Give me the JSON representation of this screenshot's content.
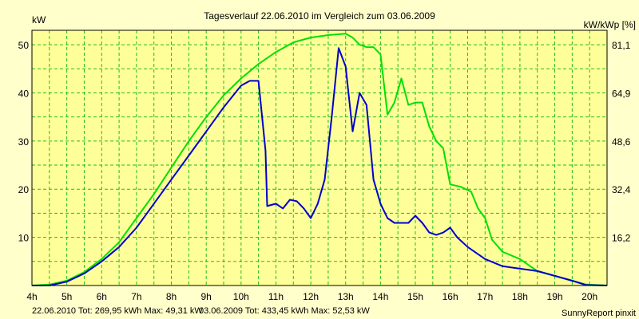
{
  "chart_data": {
    "type": "line",
    "title": "Tagesverlauf 22.06.2010 im Vergleich zum 03.06.2009",
    "ylabel_left": "kW",
    "ylabel_right": "kW/kWp [%]",
    "xlim": [
      4,
      20.5
    ],
    "ylim": [
      0,
      53
    ],
    "grid": true,
    "x_ticks": [
      4,
      5,
      6,
      7,
      8,
      9,
      10,
      11,
      12,
      13,
      14,
      15,
      16,
      17,
      18,
      19,
      20
    ],
    "x_tick_labels": [
      "4h",
      "5h",
      "6h",
      "7h",
      "8h",
      "9h",
      "10h",
      "11h",
      "12h",
      "13h",
      "14h",
      "15h",
      "16h",
      "17h",
      "18h",
      "19h",
      "20h"
    ],
    "y_ticks": [
      10,
      20,
      30,
      40,
      50
    ],
    "y_tick_labels": [
      "10",
      "20",
      "30",
      "40",
      "50"
    ],
    "y_right_ticks": [
      10,
      20,
      30,
      40,
      50
    ],
    "y_right_tick_labels": [
      "16,2",
      "32,4",
      "48,6",
      "64,9",
      "81,1"
    ],
    "series": [
      {
        "name": "22.06.2010",
        "color": "#0000cc",
        "points": [
          [
            4.0,
            0
          ],
          [
            4.5,
            0
          ],
          [
            5.0,
            0.8
          ],
          [
            5.5,
            2.5
          ],
          [
            6.0,
            5
          ],
          [
            6.5,
            8
          ],
          [
            7.0,
            12
          ],
          [
            7.5,
            17
          ],
          [
            8.0,
            22
          ],
          [
            8.5,
            27
          ],
          [
            9.0,
            32
          ],
          [
            9.5,
            37
          ],
          [
            10.0,
            41.5
          ],
          [
            10.25,
            42.5
          ],
          [
            10.5,
            42.5
          ],
          [
            10.7,
            28
          ],
          [
            10.75,
            16.5
          ],
          [
            11.0,
            17
          ],
          [
            11.2,
            16
          ],
          [
            11.4,
            17.8
          ],
          [
            11.6,
            17.5
          ],
          [
            11.8,
            16
          ],
          [
            12.0,
            14
          ],
          [
            12.2,
            17
          ],
          [
            12.4,
            22
          ],
          [
            12.6,
            35
          ],
          [
            12.8,
            49.3
          ],
          [
            13.0,
            45.5
          ],
          [
            13.2,
            32
          ],
          [
            13.4,
            40
          ],
          [
            13.6,
            37.5
          ],
          [
            13.8,
            22
          ],
          [
            14.0,
            17
          ],
          [
            14.2,
            14
          ],
          [
            14.4,
            13
          ],
          [
            14.6,
            13
          ],
          [
            14.8,
            13
          ],
          [
            15.0,
            14.5
          ],
          [
            15.2,
            13
          ],
          [
            15.4,
            11
          ],
          [
            15.6,
            10.5
          ],
          [
            15.8,
            11
          ],
          [
            16.0,
            12
          ],
          [
            16.2,
            10
          ],
          [
            16.5,
            8
          ],
          [
            17.0,
            5.5
          ],
          [
            17.5,
            4
          ],
          [
            18.0,
            3.5
          ],
          [
            18.5,
            3
          ],
          [
            19.0,
            2
          ],
          [
            19.5,
            1
          ],
          [
            19.9,
            0.1
          ],
          [
            20.5,
            0
          ]
        ]
      },
      {
        "name": "03.06.2009",
        "color": "#00e000",
        "points": [
          [
            4.0,
            0
          ],
          [
            4.5,
            0.2
          ],
          [
            5.0,
            1
          ],
          [
            5.5,
            2.8
          ],
          [
            6.0,
            5.5
          ],
          [
            6.5,
            9
          ],
          [
            7.0,
            14
          ],
          [
            7.5,
            19
          ],
          [
            8.0,
            24.5
          ],
          [
            8.5,
            30
          ],
          [
            9.0,
            35
          ],
          [
            9.5,
            39.5
          ],
          [
            10.0,
            43
          ],
          [
            10.5,
            46
          ],
          [
            11.0,
            48.5
          ],
          [
            11.5,
            50.5
          ],
          [
            12.0,
            51.5
          ],
          [
            12.5,
            52
          ],
          [
            13.0,
            52.3
          ],
          [
            13.2,
            51.5
          ],
          [
            13.4,
            50
          ],
          [
            13.6,
            49.5
          ],
          [
            13.8,
            49.5
          ],
          [
            14.0,
            48
          ],
          [
            14.2,
            35.5
          ],
          [
            14.4,
            38
          ],
          [
            14.6,
            43
          ],
          [
            14.8,
            37.5
          ],
          [
            15.0,
            38
          ],
          [
            15.2,
            38
          ],
          [
            15.4,
            33
          ],
          [
            15.6,
            30
          ],
          [
            15.8,
            28.5
          ],
          [
            16.0,
            21
          ],
          [
            16.3,
            20.5
          ],
          [
            16.6,
            19.5
          ],
          [
            16.8,
            16
          ],
          [
            17.0,
            14
          ],
          [
            17.2,
            9.5
          ],
          [
            17.5,
            7
          ],
          [
            18.0,
            5.5
          ],
          [
            18.5,
            3
          ],
          [
            19.0,
            2
          ],
          [
            19.5,
            1
          ],
          [
            19.9,
            0.2
          ],
          [
            20.5,
            0
          ]
        ]
      }
    ],
    "footer": {
      "series1_text": "22.06.2010 Tot: 269,95 kWh Max: 49,31 kW",
      "series2_text": "03.06.2009 Tot: 433,45 kWh Max: 52,53 kW",
      "brand": "SunnyReport pinxit"
    },
    "colors": {
      "background": "#ffffcc",
      "plot_background": "#ffff99",
      "grid": "#22bb22"
    }
  }
}
